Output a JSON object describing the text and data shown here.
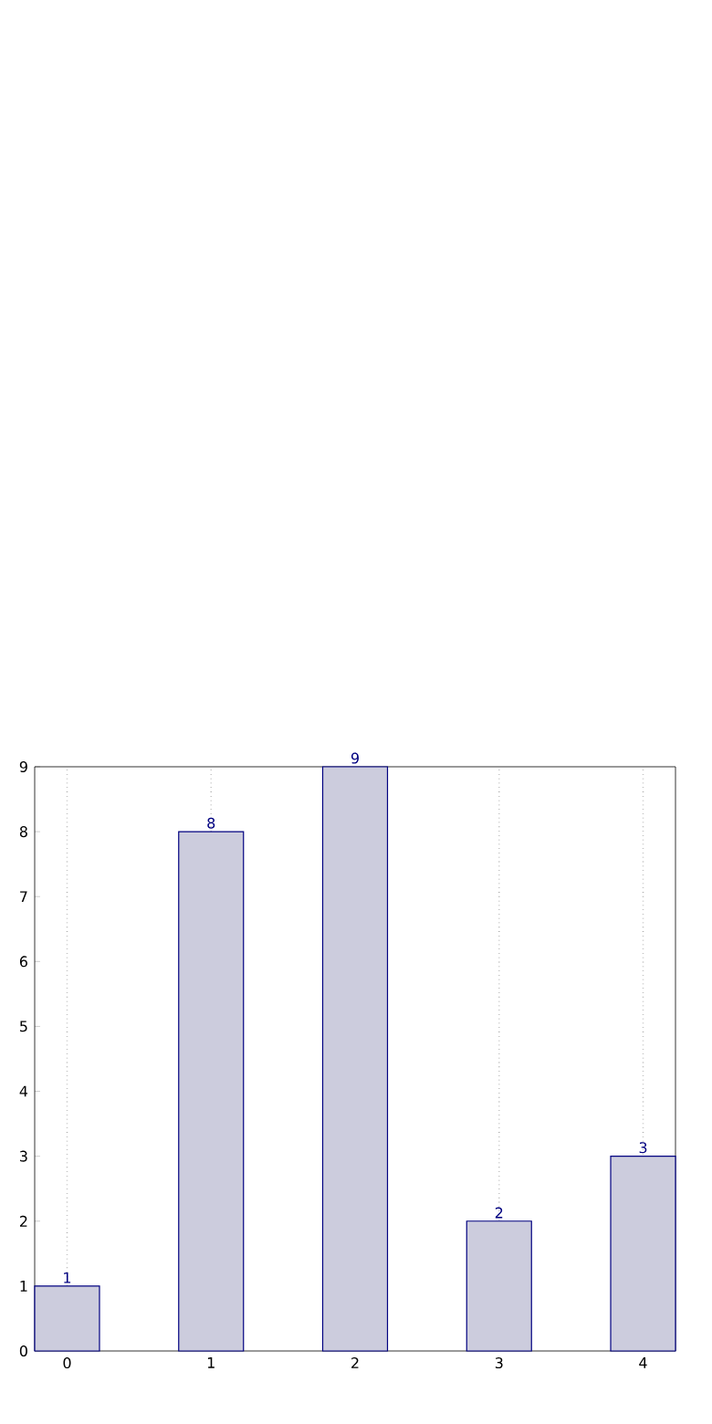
{
  "chart_data": {
    "type": "bar",
    "x": [
      0,
      1,
      2,
      3,
      4
    ],
    "values": [
      1,
      8,
      9,
      2,
      3
    ],
    "color": "#ccccdd",
    "xlim": [
      -0.225,
      4.225
    ],
    "ylim": [
      0,
      9
    ],
    "xticks": [
      0,
      1,
      2,
      3,
      4
    ],
    "yticks": [
      0,
      1,
      2,
      3,
      4,
      5,
      6,
      7,
      8,
      9
    ],
    "grid": "x",
    "data_labels": true
  }
}
